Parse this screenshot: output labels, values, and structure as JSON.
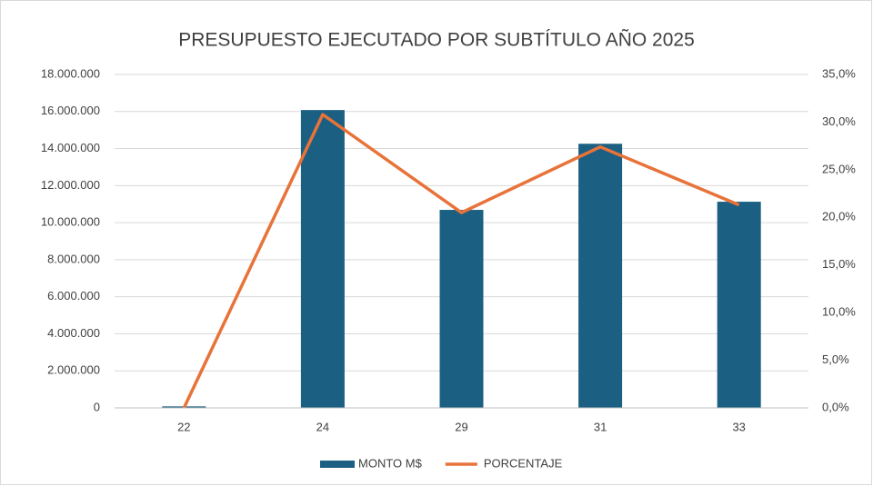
{
  "chart_data": {
    "type": "bar",
    "title": "PRESUPUESTO EJECUTADO POR SUBTÍTULO AÑO 2025",
    "categories": [
      "22",
      "24",
      "29",
      "31",
      "33"
    ],
    "series": [
      {
        "name": "MONTO M$",
        "color": "#1b5f82",
        "values": [
          80000,
          16080000,
          10690000,
          14260000,
          11130000
        ]
      },
      {
        "name": "PORCENTAJE",
        "color": "#e8733a",
        "type": "line",
        "axis": "y2",
        "values": [
          0,
          30.8,
          20.5,
          27.4,
          21.3
        ]
      }
    ],
    "ylim": [
      0,
      18000000
    ],
    "yticks": [
      0,
      {
        "value": 2000000,
        "label": "2.000.000"
      },
      {
        "value": 4000000,
        "label": "4.000.000"
      },
      {
        "value": 6000000,
        "label": "6.000.000"
      },
      {
        "value": 8000000,
        "label": "8.000.000"
      },
      {
        "value": 10000000,
        "label": "10.000.000"
      },
      {
        "value": 12000000,
        "label": "12.000.000"
      },
      {
        "value": 14000000,
        "label": "14.000.000"
      },
      {
        "value": 16000000,
        "label": "16.000.000"
      },
      {
        "value": 18000000,
        "label": "18.000.000"
      }
    ],
    "y2lim": [
      0,
      35
    ],
    "y2ticks": [
      {
        "value": 0,
        "label": "0,0%"
      },
      {
        "value": 5,
        "label": "5,0%"
      },
      {
        "value": 10,
        "label": "10,0%"
      },
      {
        "value": 15,
        "label": "15,0%"
      },
      {
        "value": 20,
        "label": "20,0%"
      },
      {
        "value": 25,
        "label": "25,0%"
      },
      {
        "value": 30,
        "label": "30,0%"
      },
      {
        "value": 35,
        "label": "35,0%"
      }
    ],
    "grid": true,
    "legend": "bottom"
  }
}
